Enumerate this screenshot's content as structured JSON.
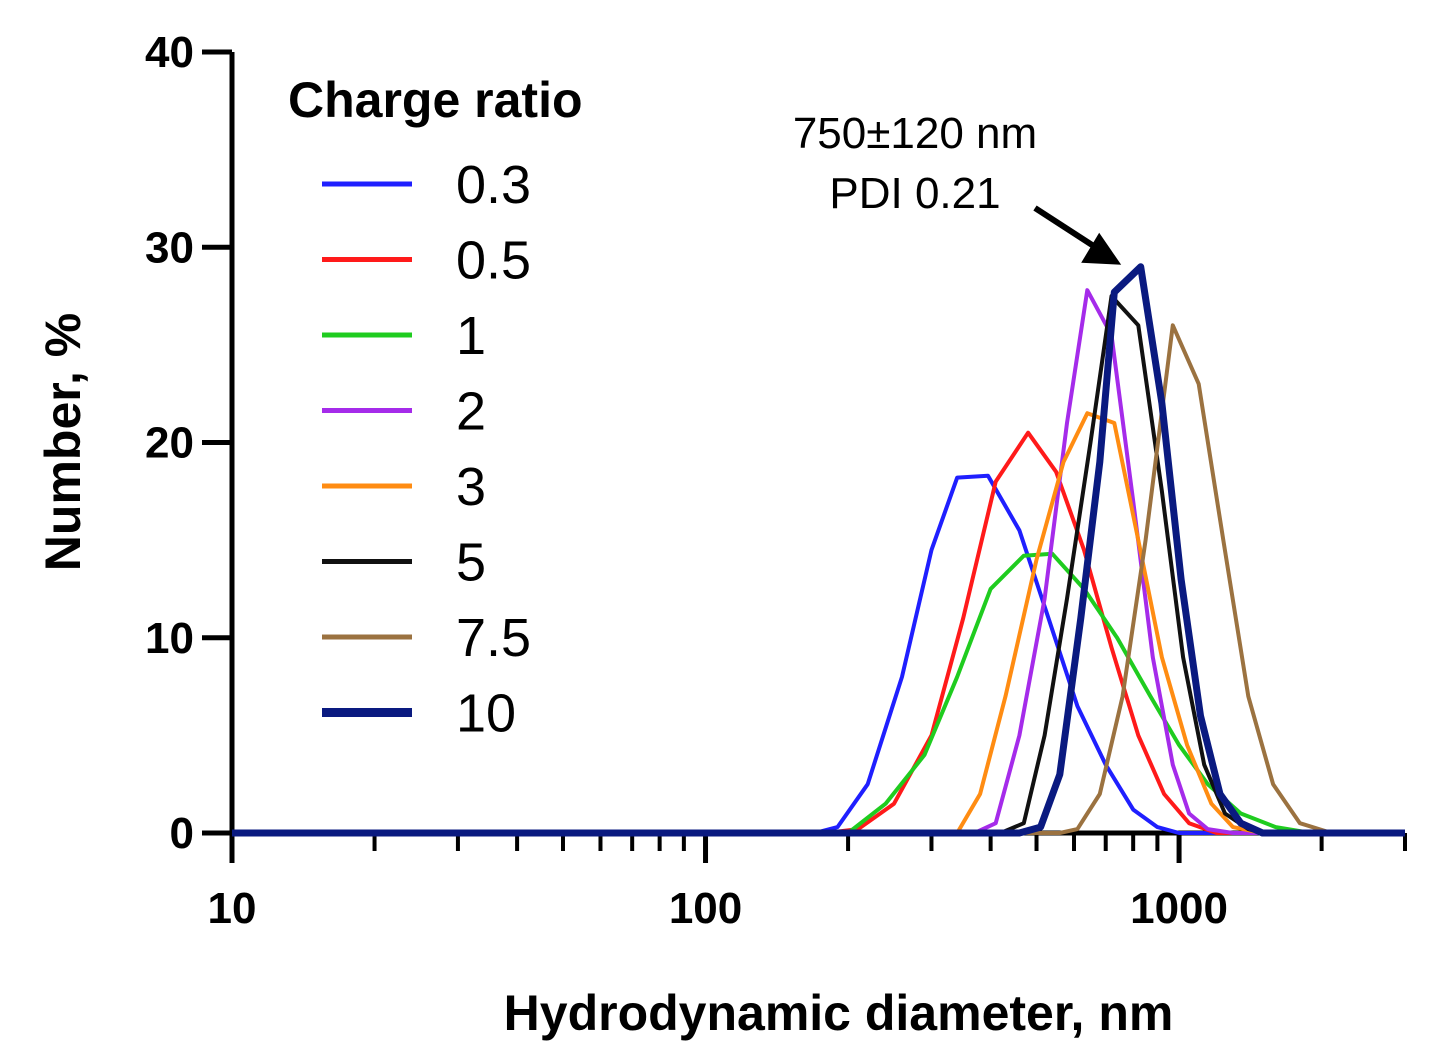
{
  "chart_data": {
    "type": "line",
    "title": "",
    "xlabel": "Hydrodynamic diameter, nm",
    "ylabel": "Number, %",
    "xscale": "log",
    "xlim": [
      10,
      3000
    ],
    "ylim": [
      0,
      40
    ],
    "x_ticks": [
      10,
      100,
      1000
    ],
    "x_tick_labels": [
      "10",
      "100",
      "1000"
    ],
    "y_ticks": [
      0,
      10,
      20,
      30,
      40
    ],
    "y_tick_labels": [
      "0",
      "10",
      "20",
      "30",
      "40"
    ],
    "grid": false,
    "legend": {
      "title": "Charge ratio",
      "placement": "top-left"
    },
    "annotation": {
      "line1": "750±120 nm",
      "line2": "PDI 0.21",
      "target": [
        800,
        29
      ]
    },
    "series": [
      {
        "name": "0.3",
        "color": "#1f1fff",
        "points": [
          [
            10,
            0
          ],
          [
            170,
            0
          ],
          [
            190,
            0.3
          ],
          [
            220,
            2.5
          ],
          [
            260,
            8
          ],
          [
            300,
            14.5
          ],
          [
            340,
            18.2
          ],
          [
            395,
            18.3
          ],
          [
            460,
            15.5
          ],
          [
            530,
            11
          ],
          [
            610,
            6.5
          ],
          [
            700,
            3.5
          ],
          [
            800,
            1.2
          ],
          [
            900,
            0.3
          ],
          [
            1000,
            0
          ],
          [
            3000,
            0
          ]
        ]
      },
      {
        "name": "0.5",
        "color": "#ff1a1a",
        "points": [
          [
            10,
            0
          ],
          [
            180,
            0
          ],
          [
            210,
            0.2
          ],
          [
            250,
            1.5
          ],
          [
            300,
            5
          ],
          [
            350,
            11
          ],
          [
            410,
            18
          ],
          [
            480,
            20.5
          ],
          [
            550,
            18.5
          ],
          [
            630,
            14.5
          ],
          [
            720,
            9.5
          ],
          [
            820,
            5
          ],
          [
            930,
            2
          ],
          [
            1050,
            0.5
          ],
          [
            1200,
            0
          ],
          [
            3000,
            0
          ]
        ]
      },
      {
        "name": "1",
        "color": "#1fcc1f",
        "points": [
          [
            10,
            0
          ],
          [
            200,
            0
          ],
          [
            240,
            1.5
          ],
          [
            290,
            4
          ],
          [
            340,
            8
          ],
          [
            400,
            12.5
          ],
          [
            470,
            14.2
          ],
          [
            540,
            14.3
          ],
          [
            630,
            12.5
          ],
          [
            740,
            10
          ],
          [
            870,
            7
          ],
          [
            1000,
            4.5
          ],
          [
            1150,
            2.5
          ],
          [
            1350,
            1
          ],
          [
            1600,
            0.3
          ],
          [
            1900,
            0
          ],
          [
            3000,
            0
          ]
        ]
      },
      {
        "name": "2",
        "color": "#a52bea",
        "points": [
          [
            10,
            0
          ],
          [
            370,
            0
          ],
          [
            410,
            0.5
          ],
          [
            460,
            5
          ],
          [
            520,
            12
          ],
          [
            580,
            21
          ],
          [
            640,
            27.8
          ],
          [
            720,
            25.5
          ],
          [
            800,
            17
          ],
          [
            880,
            9
          ],
          [
            970,
            3.5
          ],
          [
            1050,
            1
          ],
          [
            1150,
            0.2
          ],
          [
            1300,
            0
          ],
          [
            3000,
            0
          ]
        ]
      },
      {
        "name": "3",
        "color": "#ff8c12",
        "points": [
          [
            10,
            0
          ],
          [
            340,
            0
          ],
          [
            380,
            2
          ],
          [
            430,
            7
          ],
          [
            500,
            14
          ],
          [
            570,
            19
          ],
          [
            640,
            21.5
          ],
          [
            730,
            21
          ],
          [
            820,
            15
          ],
          [
            920,
            9
          ],
          [
            1040,
            4.5
          ],
          [
            1170,
            1.5
          ],
          [
            1300,
            0.3
          ],
          [
            1500,
            0
          ],
          [
            3000,
            0
          ]
        ]
      },
      {
        "name": "5",
        "color": "#111111",
        "points": [
          [
            10,
            0
          ],
          [
            420,
            0
          ],
          [
            470,
            0.5
          ],
          [
            520,
            5
          ],
          [
            580,
            12
          ],
          [
            650,
            20
          ],
          [
            720,
            27.5
          ],
          [
            820,
            26
          ],
          [
            920,
            17.5
          ],
          [
            1020,
            9
          ],
          [
            1130,
            3.5
          ],
          [
            1250,
            1
          ],
          [
            1400,
            0.2
          ],
          [
            1500,
            0
          ],
          [
            3000,
            0
          ]
        ]
      },
      {
        "name": "7.5",
        "color": "#9b7240",
        "points": [
          [
            10,
            0
          ],
          [
            560,
            0
          ],
          [
            610,
            0.2
          ],
          [
            680,
            2
          ],
          [
            760,
            7
          ],
          [
            850,
            15
          ],
          [
            970,
            26
          ],
          [
            1100,
            23
          ],
          [
            1240,
            15
          ],
          [
            1400,
            7
          ],
          [
            1580,
            2.5
          ],
          [
            1800,
            0.5
          ],
          [
            2100,
            0
          ],
          [
            3000,
            0
          ]
        ]
      },
      {
        "name": "10",
        "color": "#0a1a80",
        "points": [
          [
            10,
            0
          ],
          [
            460,
            0
          ],
          [
            510,
            0.3
          ],
          [
            560,
            3
          ],
          [
            620,
            11
          ],
          [
            680,
            19
          ],
          [
            730,
            27.7
          ],
          [
            830,
            29
          ],
          [
            920,
            22
          ],
          [
            1010,
            13
          ],
          [
            1110,
            6
          ],
          [
            1220,
            2
          ],
          [
            1350,
            0.5
          ],
          [
            1500,
            0
          ],
          [
            3000,
            0
          ]
        ]
      }
    ]
  }
}
